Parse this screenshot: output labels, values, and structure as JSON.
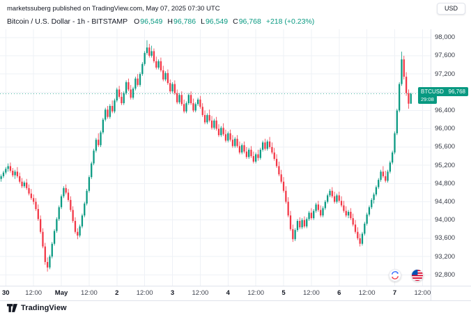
{
  "header": {
    "attribution": "marketssuberg published on TradingView.com, May 07, 2025 07:30 UTC",
    "currency_button": "USD"
  },
  "symbol": {
    "title": "Bitcoin / U.S. Dollar - 1h - BITSTAMP",
    "ohlc": [
      {
        "label": "O",
        "value": "96,549"
      },
      {
        "label": "H",
        "value": "96,786"
      },
      {
        "label": "L",
        "value": "96,549"
      },
      {
        "label": "C",
        "value": "96,768"
      }
    ],
    "change": "+218 (+0.23%)"
  },
  "price_label": {
    "symbol": "BTCUSD",
    "price": "96,768",
    "countdown": "29:08"
  },
  "footer": {
    "brand": "TradingView"
  },
  "icons": {
    "badge1": "currency-conversion-icon",
    "badge2": "usd-flag-icon"
  },
  "chart_data": {
    "type": "candlestick",
    "title": "Bitcoin / U.S. Dollar 1h BITSTAMP",
    "last_price": 96768,
    "last_candle": {
      "open": 96549,
      "high": 96786,
      "low": 96549,
      "close": 96768,
      "change": "+218 (+0.23%)"
    },
    "countdown": "29:08",
    "colors": {
      "up": "#089981",
      "down": "#F23645",
      "grid": "#eef1f6",
      "axis_text": "#363a45"
    },
    "y_axis": {
      "min": 92560,
      "max": 98180,
      "ticks": [
        92800,
        93200,
        93600,
        94000,
        94400,
        94800,
        95200,
        95600,
        96000,
        96400,
        96800,
        97200,
        97600,
        98000
      ]
    },
    "x_axis": {
      "total_slots": 186,
      "start": "Apr 29 22:00",
      "interval_hours": 1,
      "ticks": [
        {
          "slot": 2,
          "label": "30",
          "major": true
        },
        {
          "slot": 14,
          "label": "12:00",
          "major": false
        },
        {
          "slot": 26,
          "label": "May",
          "major": true
        },
        {
          "slot": 38,
          "label": "12:00",
          "major": false
        },
        {
          "slot": 50,
          "label": "2",
          "major": true
        },
        {
          "slot": 62,
          "label": "12:00",
          "major": false
        },
        {
          "slot": 74,
          "label": "3",
          "major": true
        },
        {
          "slot": 86,
          "label": "12:00",
          "major": false
        },
        {
          "slot": 98,
          "label": "4",
          "major": true
        },
        {
          "slot": 110,
          "label": "12:00",
          "major": false
        },
        {
          "slot": 122,
          "label": "5",
          "major": true
        },
        {
          "slot": 134,
          "label": "12:00",
          "major": false
        },
        {
          "slot": 146,
          "label": "6",
          "major": true
        },
        {
          "slot": 158,
          "label": "12:00",
          "major": false
        },
        {
          "slot": 170,
          "label": "7",
          "major": true
        },
        {
          "slot": 182,
          "label": "12:00",
          "major": false
        }
      ]
    },
    "candles": [
      [
        94900,
        95000,
        94840,
        94960
      ],
      [
        94960,
        95080,
        94920,
        95040
      ],
      [
        95040,
        95160,
        95000,
        95120
      ],
      [
        95120,
        95240,
        95060,
        95180
      ],
      [
        95180,
        95260,
        95040,
        95080
      ],
      [
        95080,
        95140,
        94940,
        94980
      ],
      [
        94980,
        95100,
        94900,
        95060
      ],
      [
        95060,
        95160,
        94920,
        94960
      ],
      [
        94960,
        95040,
        94800,
        94840
      ],
      [
        94840,
        94920,
        94700,
        94740
      ],
      [
        94740,
        94860,
        94700,
        94820
      ],
      [
        94820,
        94900,
        94660,
        94700
      ],
      [
        94700,
        94780,
        94540,
        94580
      ],
      [
        94580,
        94680,
        94440,
        94480
      ],
      [
        94480,
        94560,
        94340,
        94400
      ],
      [
        94400,
        94480,
        94200,
        94240
      ],
      [
        94240,
        94340,
        93980,
        94020
      ],
      [
        94020,
        94100,
        93700,
        93740
      ],
      [
        93740,
        93820,
        93380,
        93420
      ],
      [
        93420,
        93500,
        93020,
        93080
      ],
      [
        93080,
        93180,
        92870,
        92960
      ],
      [
        92960,
        93240,
        92920,
        93200
      ],
      [
        93200,
        93520,
        93160,
        93480
      ],
      [
        93480,
        93800,
        93440,
        93760
      ],
      [
        93760,
        94060,
        93720,
        94020
      ],
      [
        94020,
        94320,
        93980,
        94280
      ],
      [
        94280,
        94560,
        94240,
        94520
      ],
      [
        94520,
        94740,
        94480,
        94700
      ],
      [
        94700,
        94780,
        94560,
        94600
      ],
      [
        94600,
        94680,
        94400,
        94440
      ],
      [
        94440,
        94520,
        94180,
        94220
      ],
      [
        94220,
        94300,
        93940,
        93980
      ],
      [
        93980,
        94060,
        93700,
        93740
      ],
      [
        93740,
        93820,
        93580,
        93660
      ],
      [
        93660,
        93900,
        93620,
        93860
      ],
      [
        93860,
        94140,
        93820,
        94100
      ],
      [
        94100,
        94400,
        94060,
        94360
      ],
      [
        94360,
        94680,
        94320,
        94640
      ],
      [
        94640,
        94980,
        94600,
        94940
      ],
      [
        94940,
        95280,
        94900,
        95240
      ],
      [
        95240,
        95560,
        95200,
        95520
      ],
      [
        95520,
        95800,
        95480,
        95760
      ],
      [
        95760,
        95900,
        95600,
        95640
      ],
      [
        95640,
        95960,
        95600,
        95920
      ],
      [
        95920,
        96240,
        95880,
        96200
      ],
      [
        96200,
        96460,
        96160,
        96420
      ],
      [
        96420,
        96500,
        96220,
        96260
      ],
      [
        96260,
        96540,
        96220,
        96500
      ],
      [
        96500,
        96620,
        96340,
        96380
      ],
      [
        96380,
        96660,
        96340,
        96620
      ],
      [
        96620,
        96900,
        96580,
        96860
      ],
      [
        96860,
        96940,
        96660,
        96700
      ],
      [
        96700,
        96800,
        96520,
        96560
      ],
      [
        96560,
        96820,
        96520,
        96780
      ],
      [
        96780,
        97060,
        96740,
        97020
      ],
      [
        97020,
        97100,
        96820,
        96860
      ],
      [
        96860,
        96960,
        96640,
        96680
      ],
      [
        96680,
        96920,
        96640,
        96880
      ],
      [
        96880,
        97140,
        96840,
        97100
      ],
      [
        97100,
        97200,
        96920,
        96960
      ],
      [
        96960,
        97240,
        96920,
        97200
      ],
      [
        97200,
        97460,
        97160,
        97420
      ],
      [
        97420,
        97700,
        97380,
        97660
      ],
      [
        97660,
        97940,
        97620,
        97780
      ],
      [
        97780,
        97860,
        97560,
        97600
      ],
      [
        97600,
        97820,
        97560,
        97700
      ],
      [
        97700,
        97760,
        97440,
        97480
      ],
      [
        97480,
        97580,
        97300,
        97340
      ],
      [
        97340,
        97520,
        97300,
        97480
      ],
      [
        97480,
        97560,
        97240,
        97280
      ],
      [
        97280,
        97380,
        97040,
        97080
      ],
      [
        97080,
        97260,
        97040,
        97220
      ],
      [
        97220,
        97300,
        96960,
        97000
      ],
      [
        97000,
        97080,
        96780,
        96820
      ],
      [
        96820,
        97020,
        96780,
        96980
      ],
      [
        96980,
        97060,
        96740,
        96780
      ],
      [
        96780,
        96860,
        96540,
        96580
      ],
      [
        96580,
        96780,
        96540,
        96740
      ],
      [
        96740,
        96820,
        96500,
        96540
      ],
      [
        96540,
        96640,
        96340,
        96380
      ],
      [
        96380,
        96600,
        96340,
        96560
      ],
      [
        96560,
        96780,
        96520,
        96740
      ],
      [
        96740,
        96820,
        96520,
        96560
      ],
      [
        96560,
        96660,
        96360,
        96400
      ],
      [
        96400,
        96580,
        96360,
        96540
      ],
      [
        96540,
        96680,
        96500,
        96640
      ],
      [
        96640,
        96720,
        96440,
        96480
      ],
      [
        96480,
        96560,
        96260,
        96300
      ],
      [
        96300,
        96400,
        96100,
        96140
      ],
      [
        96140,
        96340,
        96100,
        96300
      ],
      [
        96300,
        96420,
        96140,
        96180
      ],
      [
        96180,
        96280,
        95980,
        96020
      ],
      [
        96020,
        96220,
        95980,
        96180
      ],
      [
        96180,
        96260,
        95960,
        96000
      ],
      [
        96000,
        96100,
        95820,
        95860
      ],
      [
        95860,
        96060,
        95820,
        96020
      ],
      [
        96020,
        96120,
        95840,
        95880
      ],
      [
        95880,
        95980,
        95700,
        95740
      ],
      [
        95740,
        95940,
        95700,
        95900
      ],
      [
        95900,
        95980,
        95720,
        95760
      ],
      [
        95760,
        95860,
        95580,
        95620
      ],
      [
        95620,
        95820,
        95580,
        95780
      ],
      [
        95780,
        95860,
        95580,
        95620
      ],
      [
        95620,
        95720,
        95440,
        95480
      ],
      [
        95480,
        95680,
        95440,
        95640
      ],
      [
        95640,
        95720,
        95460,
        95500
      ],
      [
        95500,
        95600,
        95340,
        95380
      ],
      [
        95380,
        95580,
        95340,
        95540
      ],
      [
        95540,
        95620,
        95360,
        95400
      ],
      [
        95400,
        95500,
        95240,
        95280
      ],
      [
        95280,
        95480,
        95240,
        95440
      ],
      [
        95440,
        95540,
        95300,
        95360
      ],
      [
        95360,
        95580,
        95320,
        95540
      ],
      [
        95540,
        95740,
        95500,
        95700
      ],
      [
        95700,
        95780,
        95520,
        95560
      ],
      [
        95560,
        95760,
        95520,
        95720
      ],
      [
        95720,
        95820,
        95560,
        95600
      ],
      [
        95600,
        95700,
        95440,
        95480
      ],
      [
        95480,
        95580,
        95300,
        95340
      ],
      [
        95340,
        95440,
        95140,
        95180
      ],
      [
        95180,
        95280,
        94960,
        95000
      ],
      [
        95000,
        95100,
        94800,
        94840
      ],
      [
        94840,
        94940,
        94600,
        94640
      ],
      [
        94640,
        94740,
        94360,
        94400
      ],
      [
        94400,
        94500,
        94060,
        94100
      ],
      [
        94100,
        94200,
        93760,
        93800
      ],
      [
        93800,
        93900,
        93520,
        93580
      ],
      [
        93580,
        93820,
        93540,
        93780
      ],
      [
        93780,
        94020,
        93740,
        93980
      ],
      [
        93980,
        94060,
        93800,
        93840
      ],
      [
        93840,
        94040,
        93800,
        94000
      ],
      [
        94000,
        94080,
        93820,
        93860
      ],
      [
        93860,
        94060,
        93820,
        94020
      ],
      [
        94020,
        94200,
        93980,
        94160
      ],
      [
        94160,
        94260,
        94000,
        94040
      ],
      [
        94040,
        94240,
        94000,
        94200
      ],
      [
        94200,
        94380,
        94160,
        94340
      ],
      [
        94340,
        94420,
        94180,
        94220
      ],
      [
        94220,
        94320,
        94060,
        94100
      ],
      [
        94100,
        94300,
        94060,
        94260
      ],
      [
        94260,
        94440,
        94220,
        94400
      ],
      [
        94400,
        94580,
        94360,
        94540
      ],
      [
        94540,
        94680,
        94500,
        94640
      ],
      [
        94640,
        94720,
        94480,
        94520
      ],
      [
        94520,
        94620,
        94360,
        94400
      ],
      [
        94400,
        94580,
        94360,
        94540
      ],
      [
        94540,
        94620,
        94380,
        94420
      ],
      [
        94420,
        94520,
        94280,
        94320
      ],
      [
        94320,
        94420,
        94160,
        94200
      ],
      [
        94200,
        94300,
        94060,
        94100
      ],
      [
        94100,
        94220,
        94040,
        94180
      ],
      [
        94180,
        94260,
        94000,
        94040
      ],
      [
        94040,
        94140,
        93860,
        93900
      ],
      [
        93900,
        94000,
        93700,
        93740
      ],
      [
        93740,
        93840,
        93560,
        93600
      ],
      [
        93600,
        93700,
        93420,
        93480
      ],
      [
        93480,
        93740,
        93440,
        93700
      ],
      [
        93700,
        93960,
        93660,
        93920
      ],
      [
        93920,
        94160,
        93880,
        94120
      ],
      [
        94120,
        94320,
        94080,
        94280
      ],
      [
        94280,
        94480,
        94240,
        94440
      ],
      [
        94440,
        94600,
        94360,
        94560
      ],
      [
        94560,
        94760,
        94520,
        94720
      ],
      [
        94720,
        94920,
        94680,
        94880
      ],
      [
        94880,
        95100,
        94840,
        95060
      ],
      [
        95060,
        95180,
        94920,
        94960
      ],
      [
        94960,
        95080,
        94820,
        94860
      ],
      [
        94860,
        95100,
        94820,
        95060
      ],
      [
        95060,
        95300,
        95020,
        95260
      ],
      [
        95260,
        95520,
        95220,
        95480
      ],
      [
        95480,
        95940,
        95440,
        95900
      ],
      [
        95900,
        96440,
        95860,
        96400
      ],
      [
        96400,
        97020,
        96360,
        96980
      ],
      [
        96980,
        97690,
        96940,
        97520
      ],
      [
        97520,
        97600,
        97080,
        97140
      ],
      [
        97140,
        97240,
        96720,
        96780
      ],
      [
        96780,
        96860,
        96440,
        96549
      ],
      [
        96549,
        96786,
        96549,
        96768
      ]
    ]
  }
}
